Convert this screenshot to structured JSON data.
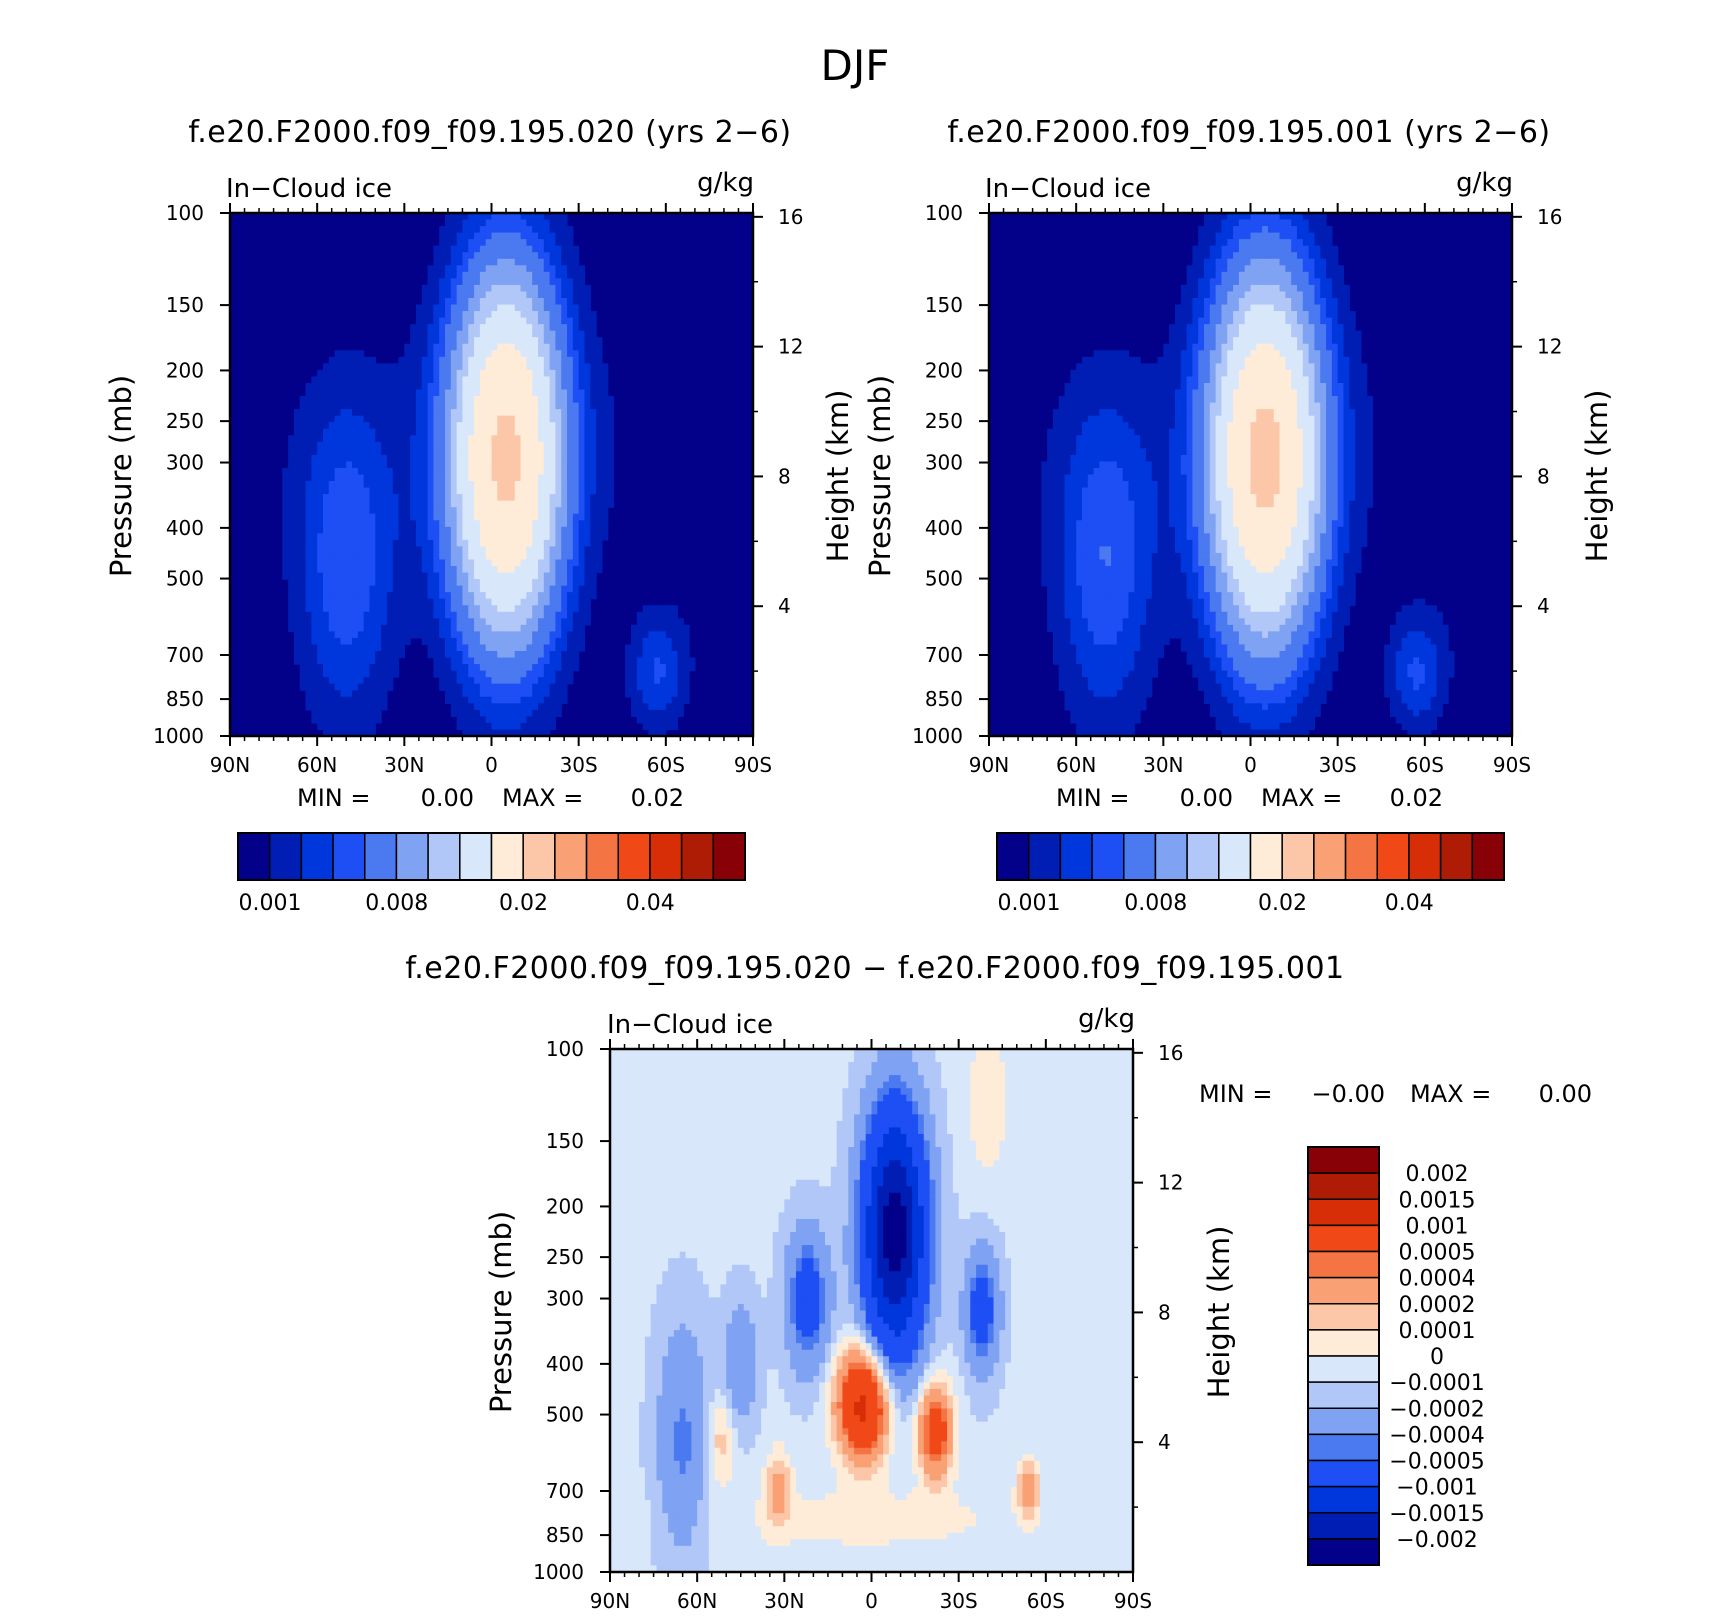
{
  "figure": {
    "title": "DJF"
  },
  "colors": {
    "scale16": [
      "#03008a",
      "#001eb4",
      "#0037dc",
      "#1d4ff5",
      "#4a79f0",
      "#7fa2f3",
      "#b0c7f7",
      "#d8e8fa",
      "#ffecd8",
      "#fbc7a8",
      "#f9a074",
      "#f57444",
      "#f04816",
      "#d72e07",
      "#af1c05",
      "#870106"
    ],
    "diff_scale": [
      "#03008a",
      "#001eb4",
      "#0037dc",
      "#1d4ff5",
      "#4a79f0",
      "#7fa2f3",
      "#b0c7f7",
      "#d8e8fa",
      "#ffecd8",
      "#fbc7a8",
      "#f9a074",
      "#f57444",
      "#f04816",
      "#d72e07",
      "#af1c05",
      "#870106"
    ]
  },
  "chart_data": [
    {
      "type": "heatmap",
      "title": "f.e20.F2000.f09_f09.195.020 (yrs 2−6)",
      "left_label": "In−Cloud ice",
      "right_label": "g/kg",
      "xlabel": "",
      "ylabel": "Pressure (mb)",
      "y2label": "Height (km)",
      "x_ticks": [
        "90N",
        "60N",
        "30N",
        "0",
        "30S",
        "60S",
        "90S"
      ],
      "y_ticks": [
        "100",
        "150",
        "200",
        "250",
        "300",
        "400",
        "500",
        "700",
        "850",
        "1000"
      ],
      "y2_ticks": [
        "16",
        "12",
        "8",
        "4"
      ],
      "min_label": "MIN =",
      "min_value": "0.00",
      "max_label": "MAX =",
      "max_value": "0.02",
      "colorbar_labels": [
        "0.001",
        "0.008",
        "0.02",
        "0.04"
      ],
      "peak_value": 0.02
    },
    {
      "type": "heatmap",
      "title": "f.e20.F2000.f09_f09.195.001 (yrs 2−6)",
      "left_label": "In−Cloud ice",
      "right_label": "g/kg",
      "xlabel": "",
      "ylabel": "Pressure (mb)",
      "y2label": "Height (km)",
      "x_ticks": [
        "90N",
        "60N",
        "30N",
        "0",
        "30S",
        "60S",
        "90S"
      ],
      "y_ticks": [
        "100",
        "150",
        "200",
        "250",
        "300",
        "400",
        "500",
        "700",
        "850",
        "1000"
      ],
      "y2_ticks": [
        "16",
        "12",
        "8",
        "4"
      ],
      "min_label": "MIN =",
      "min_value": "0.00",
      "max_label": "MAX =",
      "max_value": "0.02",
      "colorbar_labels": [
        "0.001",
        "0.008",
        "0.02",
        "0.04"
      ],
      "peak_value": 0.02
    },
    {
      "type": "heatmap",
      "title": "f.e20.F2000.f09_f09.195.020 − f.e20.F2000.f09_f09.195.001",
      "left_label": "In−Cloud ice",
      "right_label": "g/kg",
      "xlabel": "",
      "ylabel": "Pressure (mb)",
      "y2label": "Height (km)",
      "x_ticks": [
        "90N",
        "60N",
        "30N",
        "0",
        "30S",
        "60S",
        "90S"
      ],
      "y_ticks": [
        "100",
        "150",
        "200",
        "250",
        "300",
        "400",
        "500",
        "700",
        "850",
        "1000"
      ],
      "y2_ticks": [
        "16",
        "12",
        "8",
        "4"
      ],
      "min_label": "MIN =",
      "min_value": "−0.00",
      "max_label": "MAX =",
      "max_value": "0.00",
      "colorbar_labels": [
        "0.002",
        "0.0015",
        "0.001",
        "0.0005",
        "0.0004",
        "0.0002",
        "0.0001",
        "0",
        "−0.0001",
        "−0.0002",
        "−0.0004",
        "−0.0005",
        "−0.001",
        "−0.0015",
        "−0.002"
      ]
    }
  ]
}
